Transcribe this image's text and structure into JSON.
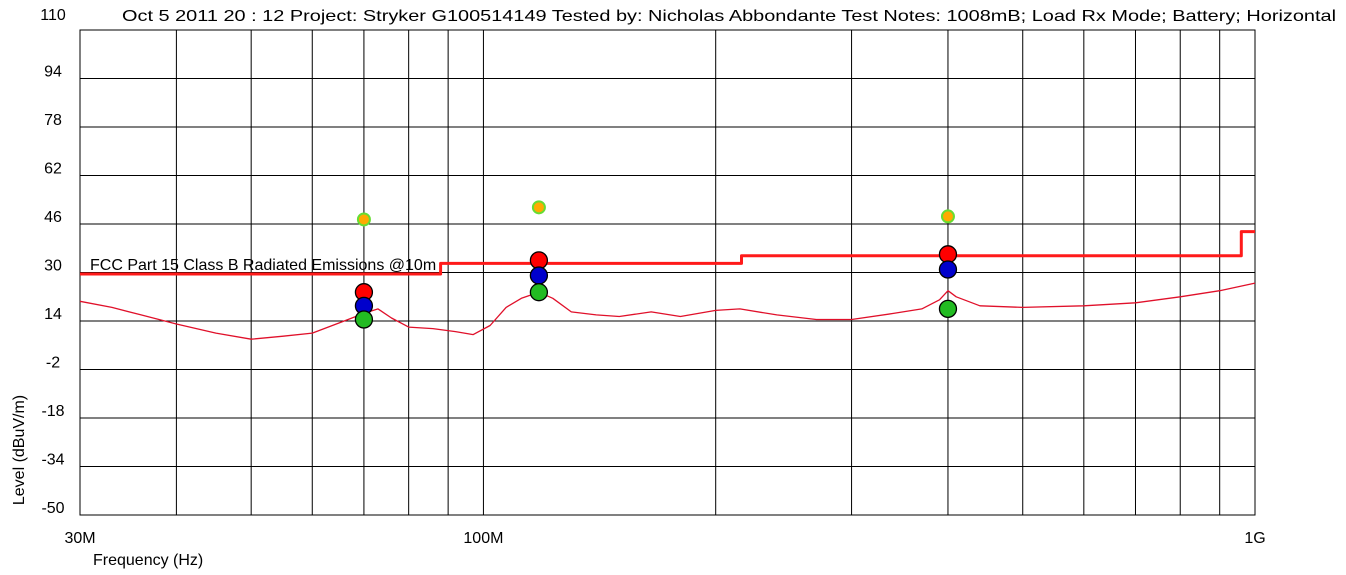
{
  "header": {
    "yaxis_top_tick": "110",
    "title": "Oct 5 2011   20 : 12  Project: Stryker G100514149  Tested by: Nicholas Abbondante  Test Notes: 1008mB; Load Rx Mode; Battery; Horizontal"
  },
  "colors": {
    "limit": "#ff1a1a",
    "trace": "#e0102a",
    "grid": "#000000",
    "marker_red": "#ff0000",
    "marker_blue": "#0000cc",
    "marker_green": "#22bb22",
    "marker_peak": "#ffaa00",
    "marker_peak_ring": "#66dd33"
  },
  "chart_data": {
    "type": "line",
    "title": "Oct 5 2011   20 : 12  Project: Stryker G100514149  Tested by: Nicholas Abbondante  Test Notes: 1008mB; Load Rx Mode; Battery; Horizontal",
    "xlabel": "Frequency (Hz)",
    "ylabel": "Level (dBuV/m)",
    "xscale": "log",
    "xlim": [
      30000000,
      1000000000
    ],
    "ylim": [
      -50,
      110
    ],
    "yticks": [
      110,
      94,
      78,
      62,
      46,
      30,
      14,
      -2,
      -18,
      -34,
      -50
    ],
    "xtick_labels": [
      {
        "x": 30000000,
        "label": "30M"
      },
      {
        "x": 100000000,
        "label": "100M"
      },
      {
        "x": 1000000000,
        "label": "1G"
      }
    ],
    "grid": true,
    "series": [
      {
        "name": "FCC Part 15 Class B Radiated Emissions @10m",
        "style": "step",
        "x": [
          30000000,
          88000000,
          88000000,
          216000000,
          216000000,
          960000000,
          960000000,
          1000000000
        ],
        "y": [
          29.5,
          29.5,
          33.0,
          33.0,
          35.5,
          35.5,
          43.5,
          43.5
        ]
      },
      {
        "name": "",
        "style": "line",
        "x": [
          30000000,
          33000000,
          36000000,
          40000000,
          45000000,
          50000000,
          55000000,
          60000000,
          66000000,
          70000000,
          73000000,
          76000000,
          80000000,
          86000000,
          92000000,
          97000000,
          102000000,
          107000000,
          112000000,
          118000000,
          123000000,
          130000000,
          140000000,
          150000000,
          165000000,
          180000000,
          200000000,
          215000000,
          240000000,
          270000000,
          300000000,
          340000000,
          370000000,
          390000000,
          400000000,
          410000000,
          440000000,
          500000000,
          600000000,
          700000000,
          800000000,
          900000000,
          1000000000
        ],
        "y": [
          20.5,
          18.5,
          16.0,
          13.0,
          10.0,
          8.0,
          9.0,
          10.0,
          14.0,
          16.5,
          18.0,
          15.0,
          12.0,
          11.5,
          10.5,
          9.5,
          12.5,
          18.5,
          21.5,
          23.5,
          21.5,
          17.0,
          16.0,
          15.5,
          17.0,
          15.5,
          17.5,
          18.0,
          16.0,
          14.5,
          14.5,
          16.5,
          18.0,
          21.0,
          24.0,
          22.0,
          19.0,
          18.5,
          19.0,
          20.0,
          22.0,
          24.0,
          26.5
        ]
      }
    ],
    "markers": [
      {
        "x": 70000000,
        "y": 47.5,
        "color": "#ffaa00"
      },
      {
        "x": 70000000,
        "y": 23.5,
        "color": "#ff0000"
      },
      {
        "x": 70000000,
        "y": 19.0,
        "color": "#0000cc"
      },
      {
        "x": 70000000,
        "y": 14.5,
        "color": "#22bb22"
      },
      {
        "x": 118000000,
        "y": 51.5,
        "color": "#ffaa00"
      },
      {
        "x": 118000000,
        "y": 34.0,
        "color": "#ff0000"
      },
      {
        "x": 118000000,
        "y": 29.0,
        "color": "#0000cc"
      },
      {
        "x": 118000000,
        "y": 23.5,
        "color": "#22bb22"
      },
      {
        "x": 400000000,
        "y": 48.5,
        "color": "#ffaa00"
      },
      {
        "x": 400000000,
        "y": 36.0,
        "color": "#ff0000"
      },
      {
        "x": 400000000,
        "y": 31.0,
        "color": "#0000cc"
      },
      {
        "x": 400000000,
        "y": 18.0,
        "color": "#22bb22"
      }
    ]
  }
}
